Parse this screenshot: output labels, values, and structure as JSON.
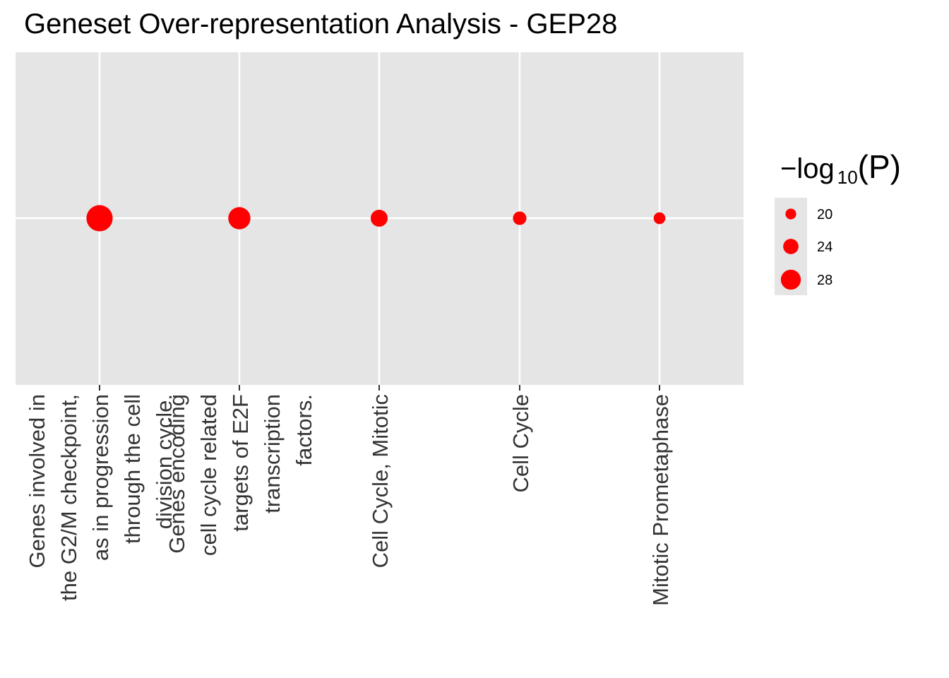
{
  "chart_data": {
    "type": "scatter",
    "title": "Geneset Over-representation Analysis - GEP28",
    "xlabel": "",
    "ylabel": "",
    "categories": [
      "Genes involved in the G2/M checkpoint, as in progression through the cell division cycle.",
      "Genes encoding cell cycle related targets of E2F transcription factors.",
      "Cell Cycle, Mitotic",
      "Cell Cycle",
      "Mitotic Prometaphase"
    ],
    "category_label_lines": [
      [
        "Genes involved in",
        "the G2/M checkpoint,",
        "as in progression",
        "through the cell",
        "division cycle."
      ],
      [
        "Genes encoding",
        "cell cycle related",
        "targets of E2F",
        "transcription",
        "factors."
      ],
      [
        "Cell Cycle, Mitotic"
      ],
      [
        "Cell Cycle"
      ],
      [
        "Mitotic Prometaphase"
      ]
    ],
    "series": [
      {
        "values": [
          29.5,
          26.0,
          21.5,
          18.5,
          17.0
        ]
      }
    ],
    "size_legend": {
      "title_prefix": "−log",
      "title_subscript": "10",
      "title_suffix": "(P)",
      "breaks": [
        20,
        24,
        28
      ],
      "labels": [
        "20",
        "24",
        "28"
      ],
      "placement": "right"
    },
    "grid": true,
    "panel_background": "#e5e5e5",
    "grid_color": "#ffffff",
    "point_color": "#ff0000",
    "text_color": "#333333"
  }
}
